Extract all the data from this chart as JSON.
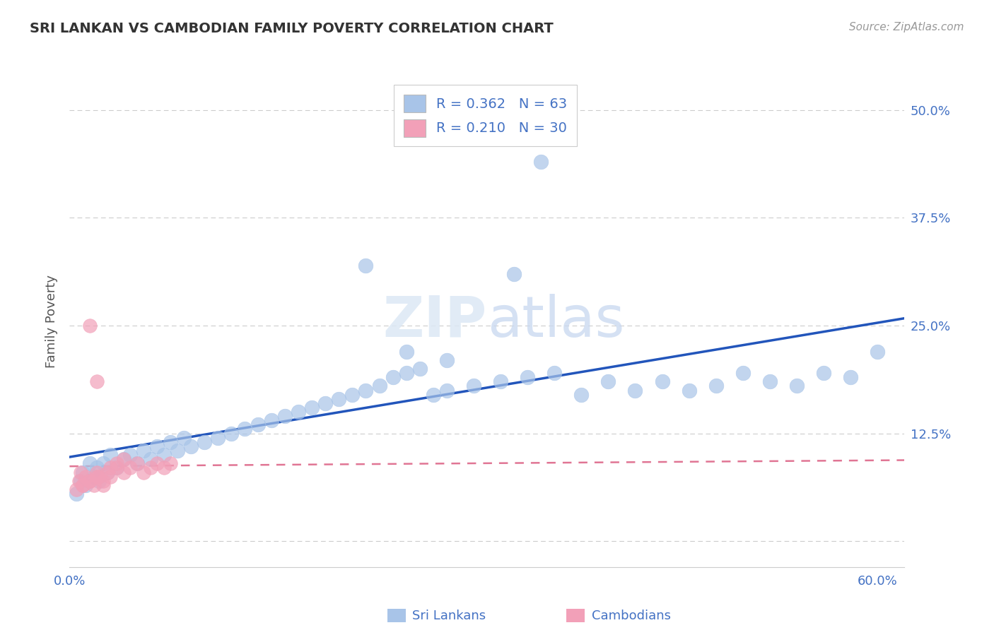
{
  "title": "SRI LANKAN VS CAMBODIAN FAMILY POVERTY CORRELATION CHART",
  "source": "Source: ZipAtlas.com",
  "ylabel": "Family Poverty",
  "sri_lankan_color": "#a8c4e8",
  "cambodian_color": "#f2a0b8",
  "sri_lankan_line_color": "#2255bb",
  "cambodian_line_color": "#dd6688",
  "background_color": "#ffffff",
  "grid_color": "#cccccc",
  "tick_color": "#4472c4",
  "title_color": "#333333",
  "source_color": "#999999",
  "ylabel_color": "#555555",
  "R_sri": 0.362,
  "N_sri": 63,
  "R_cam": 0.21,
  "N_cam": 30,
  "xlim": [
    0.0,
    0.62
  ],
  "ylim": [
    -0.03,
    0.54
  ],
  "y_ticks": [
    0.0,
    0.125,
    0.25,
    0.375,
    0.5
  ],
  "y_tick_labels": [
    "",
    "12.5%",
    "25.0%",
    "37.5%",
    "50.0%"
  ],
  "sri_x": [
    0.005,
    0.008,
    0.01,
    0.012,
    0.015,
    0.018,
    0.02,
    0.022,
    0.025,
    0.028,
    0.03,
    0.035,
    0.04,
    0.045,
    0.05,
    0.055,
    0.06,
    0.065,
    0.07,
    0.075,
    0.08,
    0.085,
    0.09,
    0.1,
    0.11,
    0.12,
    0.13,
    0.14,
    0.15,
    0.16,
    0.17,
    0.18,
    0.19,
    0.2,
    0.21,
    0.22,
    0.23,
    0.24,
    0.25,
    0.26,
    0.27,
    0.28,
    0.3,
    0.32,
    0.34,
    0.36,
    0.38,
    0.4,
    0.42,
    0.44,
    0.46,
    0.48,
    0.5,
    0.52,
    0.54,
    0.56,
    0.58,
    0.6,
    0.35,
    0.33,
    0.28,
    0.25,
    0.22
  ],
  "sri_y": [
    0.055,
    0.07,
    0.08,
    0.065,
    0.09,
    0.075,
    0.085,
    0.07,
    0.09,
    0.08,
    0.1,
    0.085,
    0.095,
    0.1,
    0.09,
    0.105,
    0.095,
    0.11,
    0.1,
    0.115,
    0.105,
    0.12,
    0.11,
    0.115,
    0.12,
    0.125,
    0.13,
    0.135,
    0.14,
    0.145,
    0.15,
    0.155,
    0.16,
    0.165,
    0.17,
    0.175,
    0.18,
    0.19,
    0.195,
    0.2,
    0.17,
    0.175,
    0.18,
    0.185,
    0.19,
    0.195,
    0.17,
    0.185,
    0.175,
    0.185,
    0.175,
    0.18,
    0.195,
    0.185,
    0.18,
    0.195,
    0.19,
    0.22,
    0.44,
    0.31,
    0.21,
    0.22,
    0.32
  ],
  "cam_x": [
    0.005,
    0.007,
    0.01,
    0.012,
    0.015,
    0.018,
    0.02,
    0.022,
    0.025,
    0.028,
    0.03,
    0.035,
    0.04,
    0.045,
    0.05,
    0.055,
    0.06,
    0.065,
    0.07,
    0.075,
    0.008,
    0.01,
    0.015,
    0.02,
    0.025,
    0.03,
    0.035,
    0.04,
    0.015,
    0.02
  ],
  "cam_y": [
    0.06,
    0.07,
    0.065,
    0.075,
    0.07,
    0.065,
    0.08,
    0.075,
    0.07,
    0.08,
    0.075,
    0.085,
    0.08,
    0.085,
    0.09,
    0.08,
    0.085,
    0.09,
    0.085,
    0.09,
    0.08,
    0.065,
    0.07,
    0.075,
    0.065,
    0.085,
    0.09,
    0.095,
    0.25,
    0.185
  ]
}
